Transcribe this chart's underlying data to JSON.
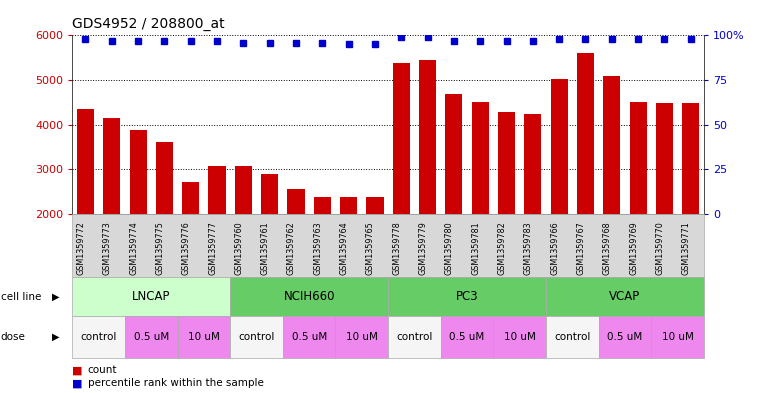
{
  "title": "GDS4952 / 208800_at",
  "samples": [
    "GSM1359772",
    "GSM1359773",
    "GSM1359774",
    "GSM1359775",
    "GSM1359776",
    "GSM1359777",
    "GSM1359760",
    "GSM1359761",
    "GSM1359762",
    "GSM1359763",
    "GSM1359764",
    "GSM1359765",
    "GSM1359778",
    "GSM1359779",
    "GSM1359780",
    "GSM1359781",
    "GSM1359782",
    "GSM1359783",
    "GSM1359766",
    "GSM1359767",
    "GSM1359768",
    "GSM1359769",
    "GSM1359770",
    "GSM1359771"
  ],
  "counts": [
    4350,
    4150,
    3880,
    3620,
    2720,
    3070,
    3070,
    2900,
    2560,
    2380,
    2380,
    2390,
    5380,
    5450,
    4680,
    4500,
    4280,
    4230,
    5020,
    5600,
    5080,
    4500,
    4490,
    4490
  ],
  "percentile_ranks": [
    98,
    97,
    97,
    97,
    97,
    97,
    96,
    96,
    96,
    96,
    95,
    95,
    99,
    99,
    97,
    97,
    97,
    97,
    98,
    98,
    98,
    98,
    98,
    98
  ],
  "cell_lines": [
    {
      "label": "LNCAP",
      "start": 0,
      "end": 6,
      "color": "#ccffcc"
    },
    {
      "label": "NCIH660",
      "start": 6,
      "end": 12,
      "color": "#66cc66"
    },
    {
      "label": "PC3",
      "start": 12,
      "end": 18,
      "color": "#66cc66"
    },
    {
      "label": "VCAP",
      "start": 18,
      "end": 24,
      "color": "#66cc66"
    }
  ],
  "dose_groups": [
    {
      "label": "control",
      "start": 0,
      "end": 2,
      "color": "#f5f5f5"
    },
    {
      "label": "0.5 uM",
      "start": 2,
      "end": 4,
      "color": "#ee88ee"
    },
    {
      "label": "10 uM",
      "start": 4,
      "end": 6,
      "color": "#ee88ee"
    },
    {
      "label": "control",
      "start": 6,
      "end": 8,
      "color": "#f5f5f5"
    },
    {
      "label": "0.5 uM",
      "start": 8,
      "end": 10,
      "color": "#ee88ee"
    },
    {
      "label": "10 uM",
      "start": 10,
      "end": 12,
      "color": "#ee88ee"
    },
    {
      "label": "control",
      "start": 12,
      "end": 14,
      "color": "#f5f5f5"
    },
    {
      "label": "0.5 uM",
      "start": 14,
      "end": 16,
      "color": "#ee88ee"
    },
    {
      "label": "10 uM",
      "start": 16,
      "end": 18,
      "color": "#ee88ee"
    },
    {
      "label": "control",
      "start": 18,
      "end": 20,
      "color": "#f5f5f5"
    },
    {
      "label": "0.5 uM",
      "start": 20,
      "end": 22,
      "color": "#ee88ee"
    },
    {
      "label": "10 uM",
      "start": 22,
      "end": 24,
      "color": "#ee88ee"
    }
  ],
  "bar_color": "#cc0000",
  "dot_color": "#0000cc",
  "ylim_left": [
    2000,
    6000
  ],
  "ylim_right": [
    0,
    100
  ],
  "yticks_left": [
    2000,
    3000,
    4000,
    5000,
    6000
  ],
  "yticks_right": [
    0,
    25,
    50,
    75,
    100
  ],
  "grid_values": [
    3000,
    4000,
    5000,
    6000
  ],
  "ylabel_left_color": "#cc0000",
  "ylabel_right_color": "#0000cc",
  "background_color": "#ffffff",
  "tick_area_color": "#d8d8d8"
}
